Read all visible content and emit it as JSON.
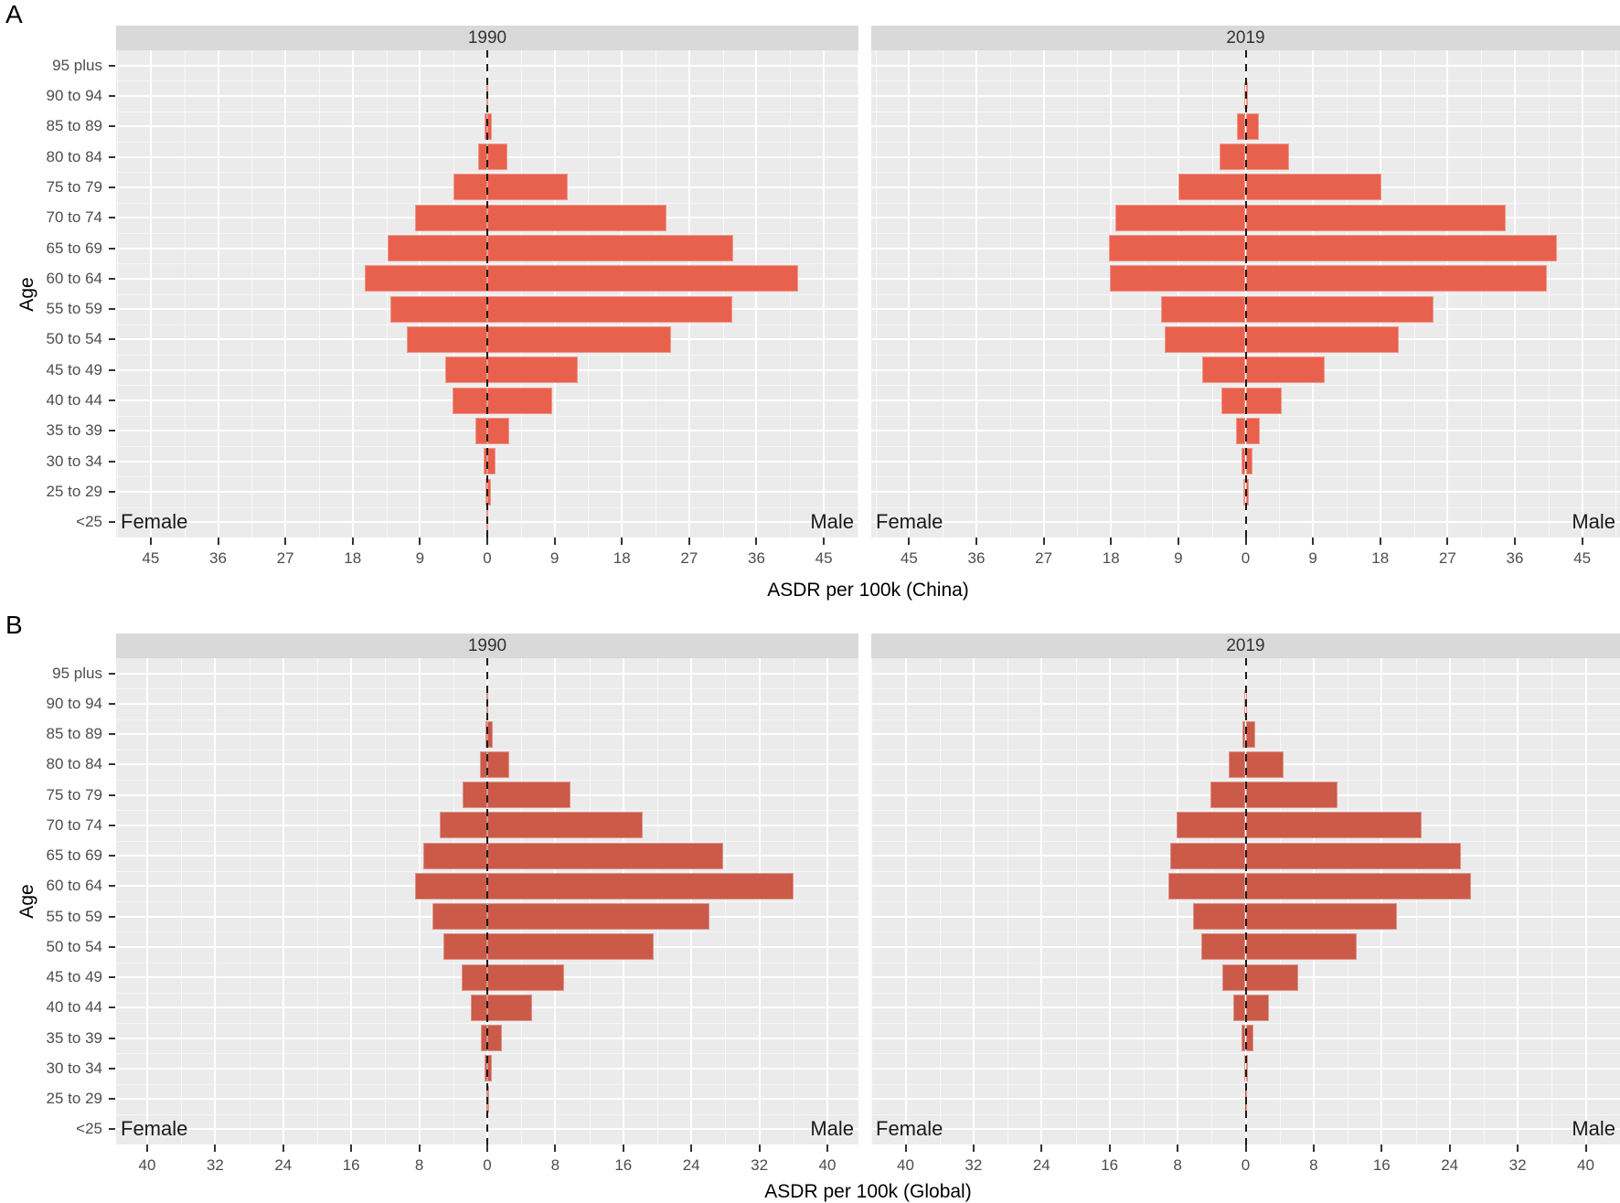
{
  "figure": {
    "background": "#ffffff",
    "plot_background": "#ebebeb",
    "strip_background": "#d9d9d9",
    "gridline_color": "#ffffff",
    "tick_text_color": "#4d4d4d",
    "zero_line_style": "black-dashed"
  },
  "chart_data": [
    {
      "type": "bar",
      "subtype": "population-pyramid",
      "panel": "A",
      "xlabel": "ASDR per 100k (China)",
      "ylabel": "Age",
      "female_label": "Female",
      "male_label": "Male",
      "bar_color": "#e8614d",
      "categories": [
        "95 plus",
        "90 to 94",
        "85 to 89",
        "80 to 84",
        "75 to 79",
        "70 to 74",
        "65 to 69",
        "60 to 64",
        "55 to 59",
        "50 to 54",
        "45 to 49",
        "40 to 44",
        "35 to 39",
        "30 to 34",
        "25 to 29",
        "<25"
      ],
      "x_ticks": [
        45,
        36,
        27,
        18,
        9,
        0,
        9,
        18,
        27,
        36,
        45
      ],
      "tick_step": 9,
      "xlim_each_side": 49.6,
      "facets": [
        {
          "name": "1990",
          "series": [
            {
              "name": "Female",
              "direction": "left",
              "values": [
                0.05,
                0.1,
                0.4,
                1.2,
                4.5,
                9.7,
                13.3,
                16.4,
                12.9,
                10.8,
                5.6,
                4.6,
                1.6,
                0.55,
                0.3,
                0.07
              ]
            },
            {
              "name": "Male",
              "direction": "right",
              "values": [
                0.06,
                0.15,
                0.6,
                2.7,
                10.7,
                23.9,
                32.9,
                41.6,
                32.8,
                24.6,
                12.1,
                8.7,
                2.9,
                1.1,
                0.55,
                0.08
              ]
            }
          ]
        },
        {
          "name": "2019",
          "series": [
            {
              "name": "Female",
              "direction": "left",
              "values": [
                0.04,
                0.2,
                1.2,
                3.5,
                9.0,
                17.4,
                18.3,
                18.1,
                11.3,
                10.8,
                5.8,
                3.2,
                1.3,
                0.6,
                0.27,
                0.05
              ]
            },
            {
              "name": "Male",
              "direction": "right",
              "values": [
                0.05,
                0.35,
                1.8,
                5.8,
                18.1,
                34.8,
                41.6,
                40.3,
                25.1,
                20.5,
                10.6,
                4.8,
                1.85,
                0.95,
                0.45,
                0.06
              ]
            }
          ]
        }
      ]
    },
    {
      "type": "bar",
      "subtype": "population-pyramid",
      "panel": "B",
      "xlabel": "ASDR per 100k (Global)",
      "ylabel": "Age",
      "female_label": "Female",
      "male_label": "Male",
      "bar_color": "#cb5a49",
      "categories": [
        "95 plus",
        "90 to 94",
        "85 to 89",
        "80 to 84",
        "75 to 79",
        "70 to 74",
        "65 to 69",
        "60 to 64",
        "55 to 59",
        "50 to 54",
        "45 to 49",
        "40 to 44",
        "35 to 39",
        "30 to 34",
        "25 to 29",
        "<25"
      ],
      "x_ticks": [
        40,
        32,
        24,
        16,
        8,
        0,
        8,
        16,
        24,
        32,
        40
      ],
      "tick_step": 8,
      "xlim_each_side": 43.7,
      "facets": [
        {
          "name": "1990",
          "series": [
            {
              "name": "Female",
              "direction": "left",
              "values": [
                0.03,
                0.1,
                0.2,
                0.9,
                2.9,
                5.6,
                7.5,
                8.5,
                6.5,
                5.2,
                3.0,
                1.9,
                0.8,
                0.35,
                0.15,
                0.04
              ]
            },
            {
              "name": "Male",
              "direction": "right",
              "values": [
                0.04,
                0.12,
                0.6,
                2.6,
                9.8,
                18.3,
                27.7,
                36.0,
                26.1,
                19.6,
                9.0,
                5.3,
                1.75,
                0.5,
                0.25,
                0.05
              ]
            }
          ]
        },
        {
          "name": "2019",
          "series": [
            {
              "name": "Female",
              "direction": "left",
              "values": [
                0.03,
                0.12,
                0.4,
                1.95,
                4.1,
                8.1,
                8.9,
                9.1,
                6.2,
                5.2,
                2.7,
                1.5,
                0.45,
                0.2,
                0.1,
                0.03
              ]
            },
            {
              "name": "Male",
              "direction": "right",
              "values": [
                0.04,
                0.15,
                1.1,
                4.5,
                10.8,
                20.7,
                25.3,
                26.5,
                17.8,
                13.1,
                6.2,
                2.7,
                0.9,
                0.3,
                0.15,
                0.04
              ]
            }
          ]
        }
      ]
    }
  ]
}
